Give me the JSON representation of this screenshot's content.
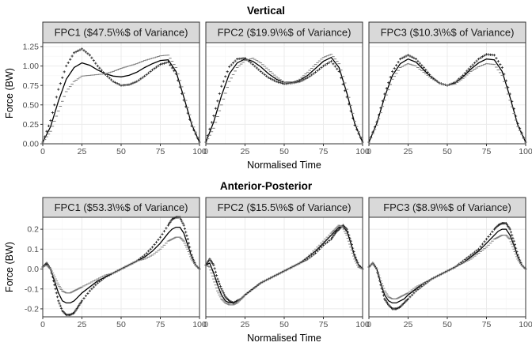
{
  "chart_data": [
    {
      "type": "line",
      "title": "Vertical",
      "xlabel": "Normalised Time",
      "ylabel": "Force (BW)",
      "xlim": [
        0,
        100
      ],
      "ylim": [
        0,
        1.3
      ],
      "xticks": [
        "0",
        "25",
        "50",
        "75",
        "100"
      ],
      "yticks": [
        "0.00",
        "0.25",
        "0.50",
        "0.75",
        "1.00",
        "1.25"
      ],
      "x": [
        0,
        5,
        10,
        15,
        20,
        25,
        30,
        35,
        40,
        45,
        50,
        55,
        60,
        65,
        70,
        75,
        80,
        85,
        90,
        95,
        100
      ],
      "grid": true,
      "legend": "none",
      "panels": [
        {
          "strip": "FPC1 ($47.5\\%$ of Variance)",
          "series": [
            {
              "role": "mean",
              "values": [
                0.02,
                0.22,
                0.55,
                0.83,
                0.98,
                1.04,
                1.01,
                0.95,
                0.9,
                0.87,
                0.86,
                0.88,
                0.92,
                0.98,
                1.03,
                1.07,
                1.08,
                0.93,
                0.6,
                0.25,
                0.02
              ]
            },
            {
              "role": "plus",
              "values": [
                0.02,
                0.3,
                0.7,
                1.0,
                1.17,
                1.22,
                1.14,
                1.0,
                0.89,
                0.8,
                0.75,
                0.76,
                0.8,
                0.87,
                0.95,
                1.02,
                1.05,
                0.9,
                0.56,
                0.23,
                0.02
              ]
            },
            {
              "role": "minus",
              "values": [
                0.02,
                0.16,
                0.42,
                0.67,
                0.8,
                0.87,
                0.88,
                0.89,
                0.9,
                0.93,
                0.97,
                1.0,
                1.03,
                1.07,
                1.1,
                1.13,
                1.14,
                0.98,
                0.65,
                0.28,
                0.02
              ]
            }
          ]
        },
        {
          "strip": "FPC2 ($19.9\\%$ of Variance)",
          "series": [
            {
              "role": "mean",
              "values": [
                0.02,
                0.28,
                0.62,
                0.9,
                1.04,
                1.09,
                1.06,
                0.99,
                0.9,
                0.83,
                0.79,
                0.79,
                0.82,
                0.88,
                0.97,
                1.06,
                1.11,
                0.98,
                0.65,
                0.26,
                0.02
              ]
            },
            {
              "role": "plus",
              "values": [
                0.02,
                0.36,
                0.74,
                0.99,
                1.09,
                1.1,
                1.02,
                0.93,
                0.85,
                0.8,
                0.77,
                0.78,
                0.8,
                0.85,
                0.92,
                1.0,
                1.06,
                0.93,
                0.6,
                0.24,
                0.02
              ]
            },
            {
              "role": "minus",
              "values": [
                0.02,
                0.2,
                0.5,
                0.8,
                0.98,
                1.07,
                1.1,
                1.04,
                0.95,
                0.86,
                0.79,
                0.78,
                0.83,
                0.92,
                1.02,
                1.11,
                1.15,
                1.03,
                0.7,
                0.29,
                0.02
              ]
            }
          ]
        },
        {
          "strip": "FPC3 ($10.3\\%$ of Variance)",
          "series": [
            {
              "role": "mean",
              "values": [
                0.02,
                0.26,
                0.6,
                0.88,
                1.03,
                1.09,
                1.05,
                0.95,
                0.85,
                0.78,
                0.75,
                0.78,
                0.86,
                0.96,
                1.04,
                1.09,
                1.08,
                0.93,
                0.6,
                0.24,
                0.02
              ]
            },
            {
              "role": "plus",
              "values": [
                0.02,
                0.28,
                0.64,
                0.93,
                1.09,
                1.14,
                1.09,
                0.98,
                0.86,
                0.78,
                0.75,
                0.79,
                0.88,
                0.99,
                1.09,
                1.15,
                1.14,
                0.98,
                0.64,
                0.26,
                0.02
              ]
            },
            {
              "role": "minus",
              "values": [
                0.02,
                0.24,
                0.56,
                0.83,
                0.98,
                1.03,
                1.0,
                0.92,
                0.84,
                0.78,
                0.75,
                0.77,
                0.84,
                0.93,
                0.99,
                1.03,
                1.02,
                0.88,
                0.56,
                0.22,
                0.02
              ]
            }
          ]
        }
      ]
    },
    {
      "type": "line",
      "title": "Anterior-Posterior",
      "xlabel": "Normalised Time",
      "ylabel": "Force (BW)",
      "xlim": [
        0,
        100
      ],
      "ylim": [
        -0.24,
        0.26
      ],
      "xticks": [
        "0",
        "25",
        "50",
        "75",
        "100"
      ],
      "yticks": [
        "-0.2",
        "-0.1",
        "0.0",
        "0.1",
        "0.2"
      ],
      "x": [
        0,
        2.5,
        5,
        7.5,
        10,
        12.5,
        15,
        17.5,
        20,
        22.5,
        25,
        30,
        35,
        40,
        45,
        50,
        55,
        60,
        65,
        70,
        75,
        80,
        82.5,
        85,
        87.5,
        90,
        92.5,
        95,
        97.5,
        100
      ],
      "grid": true,
      "legend": "none",
      "panels": [
        {
          "strip": "FPC1 ($53.3\\%$ of Variance)",
          "series": [
            {
              "role": "mean",
              "values": [
                0.01,
                0.025,
                0.0,
                -0.06,
                -0.12,
                -0.16,
                -0.17,
                -0.17,
                -0.16,
                -0.14,
                -0.12,
                -0.09,
                -0.06,
                -0.04,
                -0.02,
                0.0,
                0.02,
                0.04,
                0.06,
                0.09,
                0.13,
                0.18,
                0.2,
                0.21,
                0.21,
                0.18,
                0.12,
                0.06,
                0.02,
                0.0
              ]
            },
            {
              "role": "plus",
              "values": [
                0.01,
                0.03,
                0.0,
                -0.08,
                -0.16,
                -0.21,
                -0.23,
                -0.23,
                -0.22,
                -0.19,
                -0.16,
                -0.11,
                -0.07,
                -0.04,
                -0.02,
                0.0,
                0.02,
                0.04,
                0.07,
                0.11,
                0.16,
                0.22,
                0.25,
                0.26,
                0.26,
                0.22,
                0.15,
                0.07,
                0.02,
                0.0
              ]
            },
            {
              "role": "minus",
              "values": [
                0.01,
                0.02,
                0.0,
                -0.04,
                -0.08,
                -0.11,
                -0.12,
                -0.12,
                -0.11,
                -0.1,
                -0.09,
                -0.07,
                -0.05,
                -0.03,
                -0.02,
                0.0,
                0.02,
                0.04,
                0.05,
                0.07,
                0.1,
                0.14,
                0.15,
                0.16,
                0.16,
                0.14,
                0.1,
                0.05,
                0.02,
                0.0
              ]
            }
          ]
        },
        {
          "strip": "FPC2 ($15.5\\%$ of Variance)",
          "series": [
            {
              "role": "mean",
              "values": [
                0.02,
                0.03,
                -0.02,
                -0.08,
                -0.13,
                -0.16,
                -0.17,
                -0.17,
                -0.16,
                -0.15,
                -0.13,
                -0.1,
                -0.07,
                -0.05,
                -0.03,
                -0.01,
                0.01,
                0.03,
                0.06,
                0.09,
                0.13,
                0.17,
                0.19,
                0.21,
                0.21,
                0.19,
                0.13,
                0.06,
                0.02,
                0.0
              ]
            },
            {
              "role": "plus",
              "values": [
                0.02,
                0.05,
                0.02,
                -0.05,
                -0.1,
                -0.14,
                -0.16,
                -0.17,
                -0.16,
                -0.15,
                -0.13,
                -0.1,
                -0.07,
                -0.05,
                -0.03,
                -0.01,
                0.01,
                0.03,
                0.05,
                0.08,
                0.12,
                0.15,
                0.18,
                0.2,
                0.22,
                0.2,
                0.14,
                0.07,
                0.02,
                0.0
              ]
            },
            {
              "role": "minus",
              "values": [
                0.02,
                0.01,
                -0.05,
                -0.11,
                -0.15,
                -0.17,
                -0.18,
                -0.18,
                -0.17,
                -0.15,
                -0.13,
                -0.1,
                -0.07,
                -0.05,
                -0.03,
                -0.01,
                0.01,
                0.03,
                0.06,
                0.1,
                0.14,
                0.18,
                0.2,
                0.22,
                0.21,
                0.17,
                0.11,
                0.05,
                0.01,
                0.0
              ]
            }
          ]
        },
        {
          "strip": "FPC3 ($8.9\\%$ of Variance)",
          "series": [
            {
              "role": "mean",
              "values": [
                0.01,
                0.03,
                0.0,
                -0.07,
                -0.13,
                -0.16,
                -0.17,
                -0.17,
                -0.16,
                -0.15,
                -0.13,
                -0.1,
                -0.07,
                -0.05,
                -0.03,
                -0.01,
                0.01,
                0.03,
                0.06,
                0.09,
                0.13,
                0.17,
                0.19,
                0.2,
                0.2,
                0.17,
                0.12,
                0.06,
                0.02,
                0.0
              ]
            },
            {
              "role": "plus",
              "values": [
                0.01,
                0.03,
                0.0,
                -0.08,
                -0.15,
                -0.18,
                -0.2,
                -0.2,
                -0.19,
                -0.17,
                -0.15,
                -0.11,
                -0.08,
                -0.05,
                -0.03,
                -0.01,
                0.01,
                0.04,
                0.07,
                0.1,
                0.15,
                0.2,
                0.22,
                0.23,
                0.23,
                0.2,
                0.14,
                0.07,
                0.02,
                0.0
              ]
            },
            {
              "role": "minus",
              "values": [
                0.01,
                0.03,
                0.0,
                -0.06,
                -0.11,
                -0.14,
                -0.15,
                -0.15,
                -0.14,
                -0.13,
                -0.12,
                -0.09,
                -0.07,
                -0.05,
                -0.03,
                -0.01,
                0.01,
                0.03,
                0.05,
                0.08,
                0.11,
                0.15,
                0.16,
                0.17,
                0.17,
                0.15,
                0.1,
                0.05,
                0.02,
                0.0
              ]
            }
          ]
        }
      ]
    }
  ],
  "colors": {
    "mean": "#000000",
    "plus": "#1a1a1a",
    "minus": "#7f7f7f",
    "panel_border": "#333333",
    "strip_fill": "#d9d9d9",
    "grid_major": "#ebebeb",
    "grid_minor": "#f5f5f5"
  }
}
